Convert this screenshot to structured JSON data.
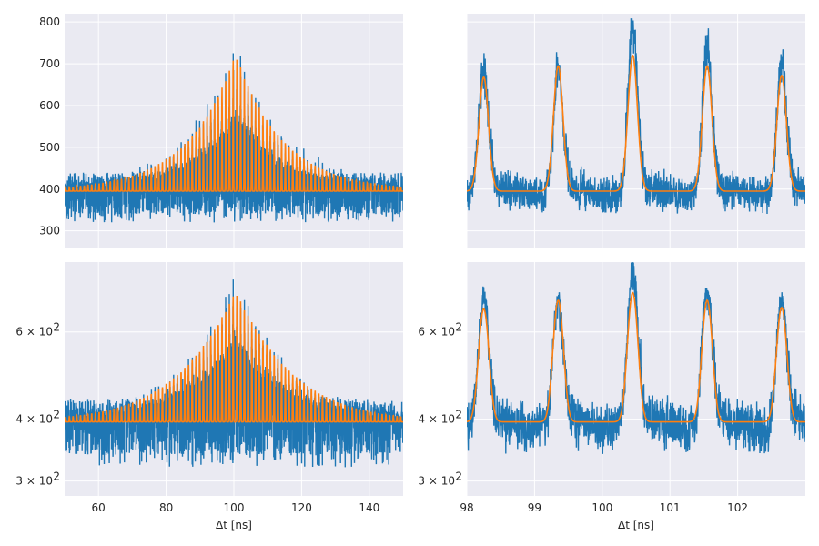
{
  "colors": {
    "data": "#1f77b4",
    "fit": "#ff7f0e",
    "panel_bg": "#eaeaf2",
    "grid": "#ffffff",
    "text": "#262626"
  },
  "chart_data": [
    {
      "type": "line",
      "panel": "top-left",
      "xlabel": "",
      "ylabel": "",
      "yscale": "linear",
      "xlim": [
        50,
        150
      ],
      "ylim": [
        260,
        820
      ],
      "xticks": [
        60,
        80,
        100,
        120,
        140
      ],
      "xtick_labels": [
        "",
        "",
        "",
        "",
        ""
      ],
      "yticks": [
        300,
        400,
        500,
        600,
        700,
        800
      ],
      "ytick_labels": [
        "300",
        "400",
        "500",
        "600",
        "700",
        "800"
      ],
      "grid": true,
      "signal": {
        "baseline": 395,
        "peak_height": 330,
        "peak_center": 100.5,
        "envelope_decay_ns": 14,
        "pulse_period_ns": 1.1,
        "noise_band": [
          340,
          440
        ],
        "max": 795
      },
      "series": [
        {
          "role": "data",
          "color": "#1f77b4"
        },
        {
          "role": "fit",
          "color": "#ff7f0e"
        }
      ]
    },
    {
      "type": "line",
      "panel": "top-right",
      "xlabel": "",
      "ylabel": "",
      "yscale": "linear",
      "xlim": [
        98,
        103
      ],
      "ylim": [
        260,
        820
      ],
      "xticks": [
        98,
        99,
        100,
        101,
        102
      ],
      "xtick_labels": [
        "",
        "",
        "",
        "",
        ""
      ],
      "yticks": [
        300,
        400,
        500,
        600,
        700,
        800
      ],
      "ytick_labels": [
        "",
        "",
        "",
        "",
        "",
        ""
      ],
      "grid": true,
      "signal": {
        "baseline": 395,
        "pulse_width_ns": 0.07,
        "noise_level": 385
      },
      "peaks": [
        {
          "x": 98.25,
          "fit": 668,
          "data": 700
        },
        {
          "x": 99.35,
          "fit": 695,
          "data": 690
        },
        {
          "x": 100.45,
          "fit": 720,
          "data": 795
        },
        {
          "x": 101.55,
          "fit": 695,
          "data": 730
        },
        {
          "x": 102.65,
          "fit": 672,
          "data": 695
        }
      ],
      "series": [
        {
          "role": "data",
          "color": "#1f77b4"
        },
        {
          "role": "fit",
          "color": "#ff7f0e"
        }
      ]
    },
    {
      "type": "line",
      "panel": "bottom-left",
      "xlabel": "Δt [ns]",
      "ylabel": "",
      "yscale": "log",
      "xlim": [
        50,
        150
      ],
      "ylim": [
        280,
        830
      ],
      "xticks": [
        60,
        80,
        100,
        120,
        140
      ],
      "xtick_labels": [
        "60",
        "80",
        "100",
        "120",
        "140"
      ],
      "yticks": [
        300,
        400,
        600
      ],
      "ytick_labels": [
        "3 × 10",
        "4 × 10",
        "6 × 10"
      ],
      "ytick_exponent": "2",
      "grid": true,
      "signal": {
        "baseline": 395,
        "peak_height": 330,
        "peak_center": 100.5,
        "envelope_decay_ns": 14,
        "pulse_period_ns": 1.1,
        "noise_band": [
          340,
          440
        ],
        "max": 800
      },
      "series": [
        {
          "role": "data",
          "color": "#1f77b4"
        },
        {
          "role": "fit",
          "color": "#ff7f0e"
        }
      ]
    },
    {
      "type": "line",
      "panel": "bottom-right",
      "xlabel": "Δt [ns]",
      "ylabel": "",
      "yscale": "log",
      "xlim": [
        98,
        103
      ],
      "ylim": [
        280,
        830
      ],
      "xticks": [
        98,
        99,
        100,
        101,
        102
      ],
      "xtick_labels": [
        "98",
        "99",
        "100",
        "101",
        "102"
      ],
      "yticks": [
        300,
        400,
        600
      ],
      "ytick_labels": [
        "3 × 10",
        "4 × 10",
        "6 × 10"
      ],
      "ytick_exponent": "2",
      "grid": true,
      "signal": {
        "baseline": 395,
        "pulse_width_ns": 0.07,
        "noise_level": 385
      },
      "peaks": [
        {
          "x": 98.25,
          "fit": 668,
          "data": 700
        },
        {
          "x": 99.35,
          "fit": 695,
          "data": 690
        },
        {
          "x": 100.45,
          "fit": 720,
          "data": 800
        },
        {
          "x": 101.55,
          "fit": 695,
          "data": 730
        },
        {
          "x": 102.65,
          "fit": 672,
          "data": 695
        }
      ],
      "series": [
        {
          "role": "data",
          "color": "#1f77b4"
        },
        {
          "role": "fit",
          "color": "#ff7f0e"
        }
      ]
    }
  ]
}
